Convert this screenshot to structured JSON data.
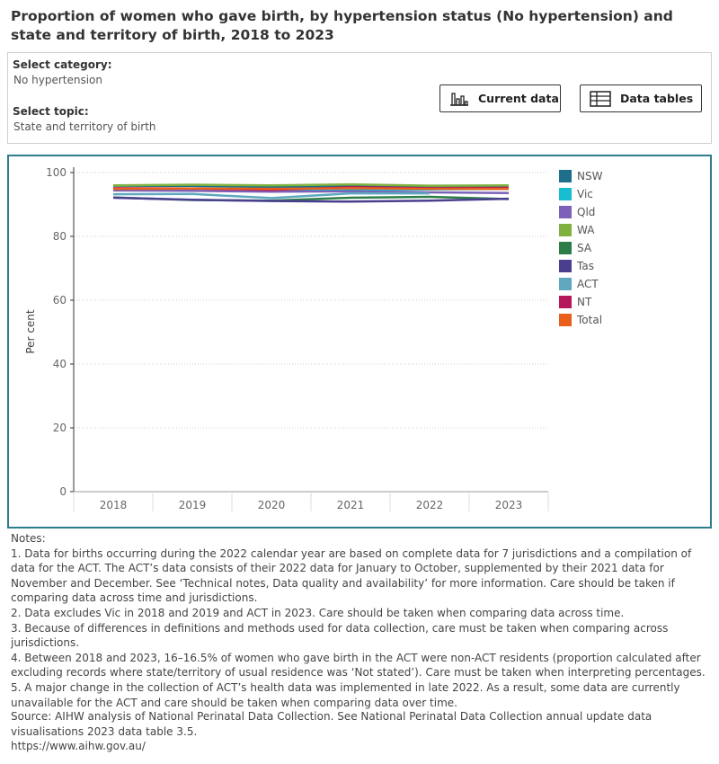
{
  "title": "Proportion of women who gave birth, by hypertension status (No hypertension) and state and territory of birth, 2018 to 2023",
  "filters": {
    "category_label": "Select category:",
    "category_value": "No hypertension",
    "topic_label": "Select topic:",
    "topic_value": "State and territory of birth"
  },
  "buttons": {
    "current_data": "Current data",
    "data_tables": "Data tables"
  },
  "chart_data": {
    "type": "line",
    "title": "",
    "xlabel": "",
    "ylabel": "Per cent",
    "categories": [
      "2018",
      "2019",
      "2020",
      "2021",
      "2022",
      "2023"
    ],
    "ylim": [
      0,
      100
    ],
    "yticks": [
      0,
      20,
      40,
      60,
      80,
      100
    ],
    "grid": true,
    "legend_placement": "right",
    "series": [
      {
        "name": "NSW",
        "color": "#1f6f8b",
        "values": [
          95.9,
          95.8,
          95.5,
          95.7,
          95.4,
          95.3
        ]
      },
      {
        "name": "Vic",
        "color": "#17becf",
        "values": [
          null,
          null,
          94.6,
          94.5,
          94.7,
          94.9
        ]
      },
      {
        "name": "Qld",
        "color": "#7b62b8",
        "values": [
          94.4,
          94.3,
          94.0,
          94.1,
          93.8,
          93.6
        ]
      },
      {
        "name": "WA",
        "color": "#7fb13f",
        "values": [
          96.0,
          96.2,
          96.0,
          96.3,
          95.9,
          96.0
        ]
      },
      {
        "name": "SA",
        "color": "#2d7d46",
        "values": [
          92.2,
          91.4,
          91.2,
          92.1,
          92.4,
          91.7
        ]
      },
      {
        "name": "Tas",
        "color": "#4a3f8f",
        "values": [
          92.1,
          91.5,
          91.1,
          90.9,
          91.2,
          91.8
        ]
      },
      {
        "name": "ACT",
        "color": "#5fa8c0",
        "values": [
          93.2,
          93.3,
          92.0,
          93.5,
          93.5,
          null
        ]
      },
      {
        "name": "NT",
        "color": "#b5185a",
        "values": [
          95.1,
          95.0,
          94.6,
          95.4,
          95.1,
          95.2
        ]
      },
      {
        "name": "Total",
        "color": "#e8601c",
        "values": [
          94.9,
          95.0,
          94.9,
          95.1,
          94.9,
          94.9
        ]
      }
    ]
  },
  "notes": {
    "heading": "Notes:",
    "items": [
      "1. Data for births occurring during the 2022 calendar year are based on complete data for 7 jurisdictions and a compilation of data for the ACT. The ACT’s data consists of their 2022 data for January to October, supplemented by their 2021 data for November and December. See ‘Technical notes, Data quality and availability’ for more information. Care should be taken if comparing data across time and jurisdictions.",
      "2. Data excludes Vic in 2018 and 2019 and ACT in 2023. Care should be taken when comparing data across time.",
      "3. Because of differences in definitions and methods used for data collection, care must be taken when comparing across jurisdictions.",
      "4. Between 2018 and 2023, 16–16.5% of women who gave birth in the ACT were non-ACT residents (proportion calculated after excluding records where state/territory of usual residence was ‘Not stated’). Care must be taken when interpreting percentages.",
      "5. A major change in the collection of ACT’s health data was implemented in late 2022. As a result, some data are currently unavailable for the ACT and care should be taken when comparing data over time."
    ]
  },
  "source": {
    "text": "Source: AIHW analysis of National Perinatal Data Collection. See National Perinatal Data Collection annual update data visualisations 2023 data table 3.5.",
    "url": "https://www.aihw.gov.au/"
  },
  "icons": {
    "current_data": "bar-chart-icon",
    "data_tables": "table-icon"
  }
}
